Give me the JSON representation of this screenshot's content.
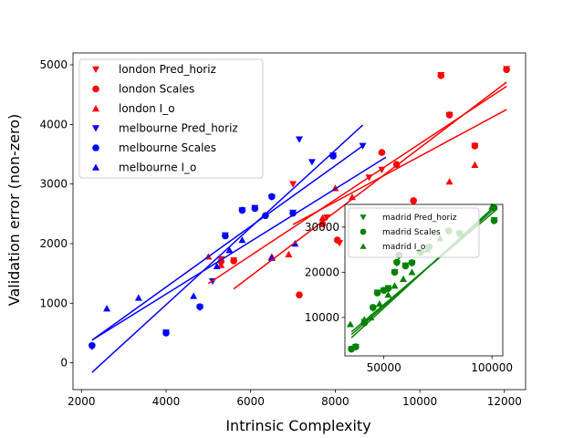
{
  "chart_data": [
    {
      "type": "scatter",
      "xlabel": "Intrinsic Complexity",
      "ylabel": "Validation error (non-zero)",
      "xlim": [
        1800,
        12500
      ],
      "ylim": [
        -450,
        5200
      ],
      "xticks": [
        2000,
        4000,
        6000,
        8000,
        10000,
        12000
      ],
      "yticks": [
        0,
        1000,
        2000,
        3000,
        4000,
        5000
      ],
      "legend_position": "upper-left",
      "series": [
        {
          "name": "london Pred_horiz",
          "marker": "triangle-down",
          "color": "#ff0000",
          "points": [
            [
              5300,
              1740
            ],
            [
              5600,
              1720
            ],
            [
              7000,
              3000
            ],
            [
              7800,
              2440
            ],
            [
              8100,
              2010
            ],
            [
              8800,
              3110
            ],
            [
              9100,
              3240
            ],
            [
              10500,
              4830
            ],
            [
              10700,
              4160
            ],
            [
              11300,
              3640
            ],
            [
              12050,
              4930
            ]
          ]
        },
        {
          "name": "london Scales",
          "marker": "circle",
          "color": "#ff0000",
          "points": [
            [
              5300,
              1700
            ],
            [
              5600,
              1710
            ],
            [
              7150,
              1140
            ],
            [
              7700,
              2330
            ],
            [
              8050,
              2060
            ],
            [
              9100,
              3530
            ],
            [
              9450,
              3330
            ],
            [
              9850,
              2720
            ],
            [
              10500,
              4820
            ],
            [
              10700,
              4160
            ],
            [
              11300,
              3640
            ],
            [
              12050,
              4920
            ]
          ]
        },
        {
          "name": "london I_o",
          "marker": "triangle-up",
          "color": "#ff0000",
          "points": [
            [
              5000,
              1780
            ],
            [
              5300,
              1640
            ],
            [
              6500,
              1780
            ],
            [
              6900,
              1820
            ],
            [
              7700,
              2430
            ],
            [
              8000,
              2930
            ],
            [
              8400,
              2780
            ],
            [
              10000,
              2580
            ],
            [
              10700,
              3040
            ],
            [
              11300,
              3320
            ]
          ]
        },
        {
          "name": "melbourne Pred_horiz",
          "marker": "triangle-down",
          "color": "#0000ff",
          "points": [
            [
              2250,
              270
            ],
            [
              4000,
              510
            ],
            [
              4800,
              930
            ],
            [
              5100,
              1370
            ],
            [
              5400,
              2140
            ],
            [
              5800,
              2560
            ],
            [
              6100,
              2600
            ],
            [
              6500,
              2780
            ],
            [
              7000,
              2520
            ],
            [
              7150,
              3750
            ],
            [
              7450,
              3370
            ],
            [
              7950,
              3480
            ],
            [
              8650,
              3640
            ]
          ]
        },
        {
          "name": "melbourne Scales",
          "marker": "circle",
          "color": "#0000ff",
          "points": [
            [
              2250,
              290
            ],
            [
              4000,
              500
            ],
            [
              4800,
              940
            ],
            [
              5400,
              2130
            ],
            [
              5800,
              2560
            ],
            [
              6100,
              2590
            ],
            [
              6350,
              2470
            ],
            [
              6500,
              2790
            ],
            [
              7000,
              2510
            ],
            [
              7950,
              3470
            ]
          ]
        },
        {
          "name": "melbourne I_o",
          "marker": "triangle-up",
          "color": "#0000ff",
          "points": [
            [
              2600,
              910
            ],
            [
              3350,
              1090
            ],
            [
              4650,
              1120
            ],
            [
              5200,
              1620
            ],
            [
              5500,
              1890
            ],
            [
              5800,
              2060
            ],
            [
              6500,
              1760
            ],
            [
              7050,
              2000
            ]
          ]
        }
      ],
      "fit_lines": [
        {
          "color": "#ff0000",
          "x": [
            5000,
            12050
          ],
          "y": [
            1330,
            4640
          ]
        },
        {
          "color": "#ff0000",
          "x": [
            5600,
            12050
          ],
          "y": [
            1240,
            4710
          ]
        },
        {
          "color": "#ff0000",
          "x": [
            7000,
            12050
          ],
          "y": [
            2320,
            4250
          ]
        },
        {
          "color": "#0000ff",
          "x": [
            2250,
            8650
          ],
          "y": [
            -160,
            3990
          ]
        },
        {
          "color": "#0000ff",
          "x": [
            2250,
            8650
          ],
          "y": [
            380,
            3640
          ]
        },
        {
          "color": "#0000ff",
          "x": [
            2250,
            9200
          ],
          "y": [
            380,
            3450
          ]
        }
      ]
    },
    {
      "type": "scatter",
      "inset": true,
      "xlim": [
        32000,
        105000
      ],
      "ylim": [
        1500,
        35000
      ],
      "xticks": [
        50000,
        100000
      ],
      "yticks": [
        10000,
        20000,
        30000
      ],
      "legend_position": "upper-left",
      "series": [
        {
          "name": "madrid Pred_horiz",
          "marker": "triangle-down",
          "color": "#008000",
          "points": [
            [
              35000,
              3000
            ],
            [
              37000,
              3500
            ],
            [
              41000,
              9000
            ],
            [
              45000,
              12000
            ],
            [
              47000,
              15500
            ],
            [
              50000,
              16000
            ],
            [
              52000,
              16500
            ],
            [
              55000,
              20000
            ],
            [
              56000,
              22000
            ],
            [
              57000,
              23500
            ],
            [
              60000,
              21500
            ],
            [
              63000,
              22000
            ],
            [
              67000,
              24500
            ],
            [
              71000,
              25500
            ],
            [
              80000,
              29000
            ],
            [
              85000,
              28500
            ],
            [
              101000,
              34000
            ],
            [
              101000,
              31500
            ]
          ]
        },
        {
          "name": "madrid Scales",
          "marker": "circle",
          "color": "#008000",
          "points": [
            [
              35000,
              3000
            ],
            [
              37000,
              3500
            ],
            [
              41000,
              8800
            ],
            [
              45000,
              12200
            ],
            [
              47000,
              15400
            ],
            [
              50000,
              16000
            ],
            [
              52000,
              16400
            ],
            [
              55000,
              20000
            ],
            [
              56000,
              22200
            ],
            [
              57000,
              23800
            ],
            [
              60000,
              21400
            ],
            [
              63000,
              22100
            ],
            [
              67000,
              24400
            ],
            [
              71000,
              25600
            ],
            [
              80000,
              29100
            ],
            [
              85000,
              28600
            ],
            [
              101000,
              34200
            ],
            [
              101000,
              31400
            ]
          ]
        },
        {
          "name": "madrid I_o",
          "marker": "triangle-up",
          "color": "#008000",
          "points": [
            [
              34500,
              8500
            ],
            [
              41000,
              9500
            ],
            [
              44000,
              10000
            ],
            [
              48000,
              13000
            ],
            [
              52000,
              15000
            ],
            [
              55000,
              17000
            ],
            [
              59000,
              18500
            ],
            [
              63000,
              20000
            ],
            [
              70000,
              25000
            ],
            [
              76000,
              27500
            ],
            [
              100000,
              34500
            ]
          ]
        }
      ],
      "fit_lines": [
        {
          "color": "#008000",
          "x": [
            35000,
            101000
          ],
          "y": [
            5500,
            34500
          ]
        },
        {
          "color": "#008000",
          "x": [
            35000,
            101000
          ],
          "y": [
            6200,
            34000
          ]
        },
        {
          "color": "#008000",
          "x": [
            35000,
            101000
          ],
          "y": [
            6800,
            33400
          ]
        }
      ]
    }
  ]
}
